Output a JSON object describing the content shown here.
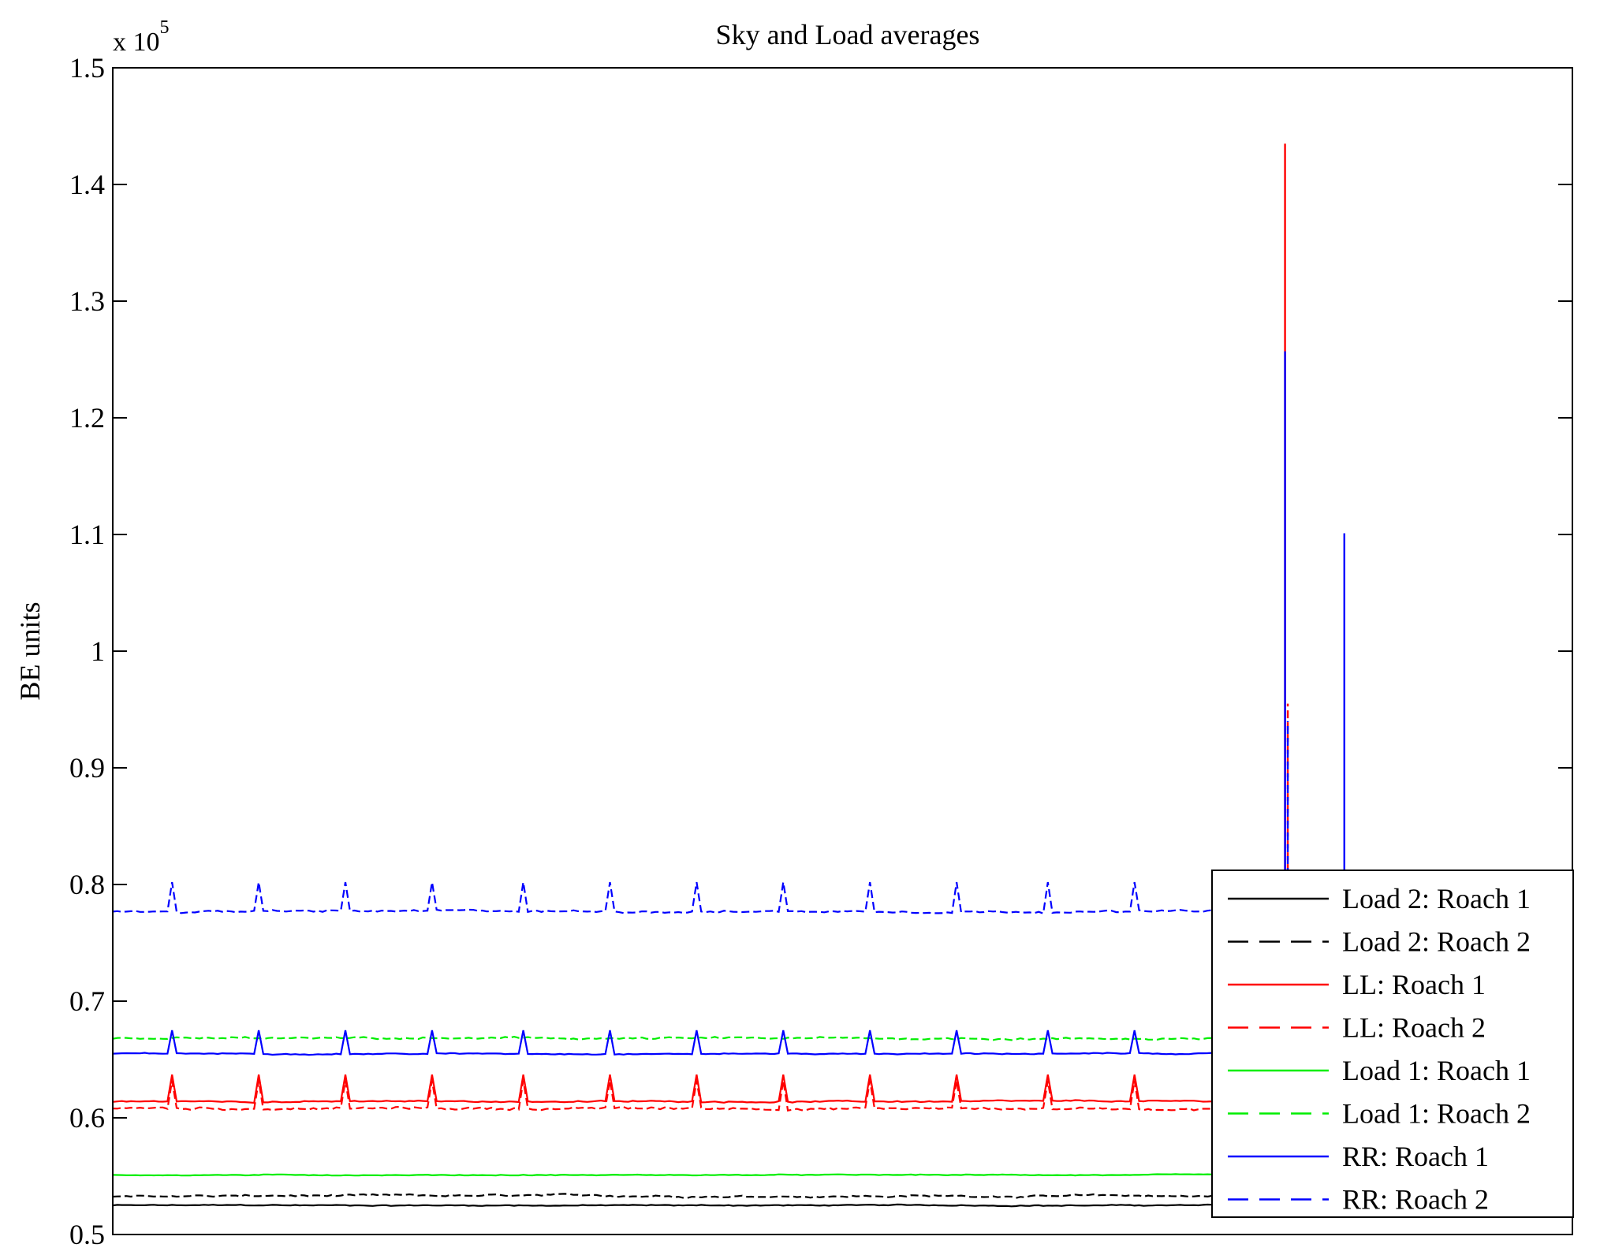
{
  "chart_data": {
    "type": "line",
    "title": "Sky and Load averages",
    "ylabel": "BE units",
    "xlabel": "",
    "exponent_label": {
      "base": "x 10",
      "power": "5"
    },
    "ylim": [
      0.5,
      1.5
    ],
    "xlim": [
      0,
      1600
    ],
    "grid": false,
    "legend_position": "bottom-right",
    "yticks": [
      {
        "value": 0.5,
        "label": "0.5"
      },
      {
        "value": 0.6,
        "label": "0.6"
      },
      {
        "value": 0.7,
        "label": "0.7"
      },
      {
        "value": 0.8,
        "label": "0.8"
      },
      {
        "value": 0.9,
        "label": "0.9"
      },
      {
        "value": 1.0,
        "label": "1"
      },
      {
        "value": 1.1,
        "label": "1.1"
      },
      {
        "value": 1.2,
        "label": "1.2"
      },
      {
        "value": 1.3,
        "label": "1.3"
      },
      {
        "value": 1.4,
        "label": "1.4"
      },
      {
        "value": 1.5,
        "label": "1.5"
      }
    ],
    "series": [
      {
        "name": "Load 2: Roach 1",
        "color": "#000000",
        "dash": "solid",
        "baseline": 0.525,
        "noise": 0.0006,
        "spike_peak": 0.525
      },
      {
        "name": "Load 2: Roach 2",
        "color": "#000000",
        "dash": "dashed",
        "baseline": 0.533,
        "noise": 0.0012,
        "spike_peak": 0.533
      },
      {
        "name": "LL: Roach 1",
        "color": "#ff0000",
        "dash": "solid",
        "baseline": 0.614,
        "noise": 0.0008,
        "spike_peak": 0.637
      },
      {
        "name": "LL: Roach 2",
        "color": "#ff0000",
        "dash": "dashed",
        "baseline": 0.608,
        "noise": 0.0015,
        "spike_peak": 0.632
      },
      {
        "name": "Load 1: Roach 1",
        "color": "#00ee00",
        "dash": "solid",
        "baseline": 0.551,
        "noise": 0.0005,
        "spike_peak": 0.551
      },
      {
        "name": "Load 1: Roach 2",
        "color": "#00ee00",
        "dash": "dashed",
        "baseline": 0.668,
        "noise": 0.0012,
        "spike_peak": 0.668
      },
      {
        "name": "RR: Roach 1",
        "color": "#0000ff",
        "dash": "solid",
        "baseline": 0.655,
        "noise": 0.0006,
        "spike_peak": 0.675
      },
      {
        "name": "RR: Roach 2",
        "color": "#0000ff",
        "dash": "dashed",
        "baseline": 0.777,
        "noise": 0.0012,
        "spike_peak": 0.802
      }
    ],
    "periodic_spike_x": [
      65,
      160,
      255,
      350,
      450,
      545,
      640,
      735,
      830,
      925,
      1025,
      1120
    ],
    "large_spikes": [
      {
        "x": 1285,
        "series": "LL: Roach 1",
        "value": 1.435
      },
      {
        "x": 1288,
        "series": "LL: Roach 2",
        "value": 0.955
      },
      {
        "x": 1285,
        "series": "RR: Roach 1",
        "value": 1.257
      },
      {
        "x": 1288,
        "series": "RR: Roach 2",
        "value": 0.94
      },
      {
        "x": 1350,
        "series": "RR: Roach 1",
        "value": 1.101
      }
    ]
  }
}
